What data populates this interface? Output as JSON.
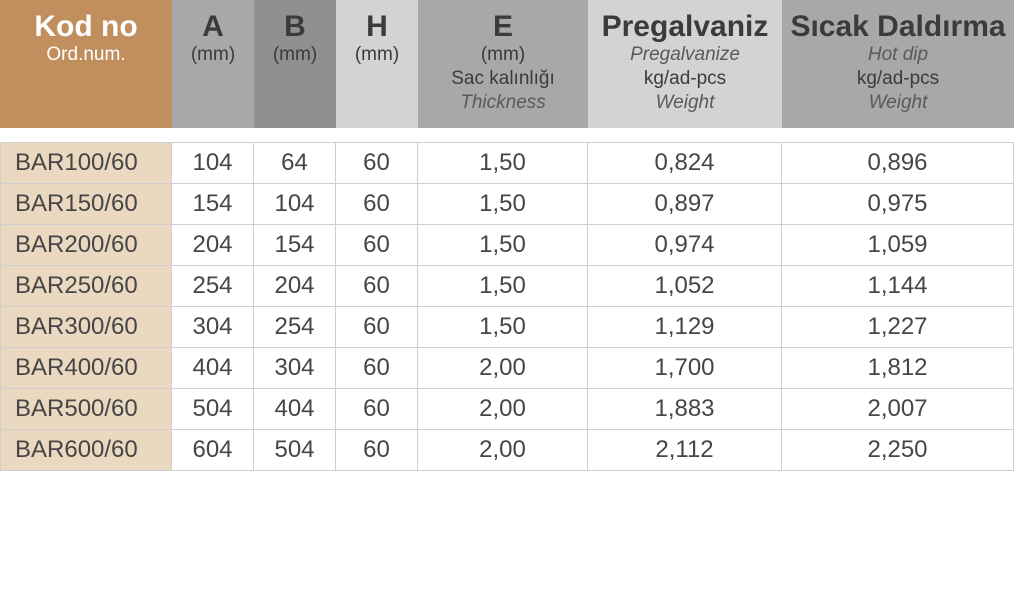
{
  "table": {
    "header_colors": {
      "kod": "#c18f5e",
      "a": "#a8a8ab",
      "b": "#909092",
      "h": "#d3d3d5",
      "e": "#a8a8ab",
      "pregal": "#d3d3d5",
      "hotdip": "#a8a8ab"
    },
    "header_text_colors": {
      "light": "#ffffff",
      "dark": "#3b3b3b",
      "dark_italic": "#5a5a5a"
    },
    "first_col_bg": "#ead8c0",
    "col_widths": [
      "172",
      "82",
      "82",
      "82",
      "170",
      "194",
      "232"
    ],
    "headers": {
      "kod": {
        "title": "Kod no",
        "sub1": "Ord.num."
      },
      "a": {
        "title": "A",
        "sub1": "(mm)"
      },
      "b": {
        "title": "B",
        "sub1": "(mm)"
      },
      "h": {
        "title": "H",
        "sub1": "(mm)"
      },
      "e": {
        "title": "E",
        "sub1": "(mm)",
        "sub2": "Sac kalınlığı",
        "sub3": "Thickness"
      },
      "pregal": {
        "title": "Pregalvaniz",
        "sub1": "Pregalvanize",
        "sub2": "kg/ad-pcs",
        "sub3": "Weight"
      },
      "hotdip": {
        "title": "Sıcak Daldırma",
        "sub1": "Hot dip",
        "sub2": "kg/ad-pcs",
        "sub3": "Weight"
      }
    },
    "rows": [
      {
        "kod": "BAR100/60",
        "a": "104",
        "b": "64",
        "h": "60",
        "e": "1,50",
        "pregal": "0,824",
        "hotdip": "0,896"
      },
      {
        "kod": "BAR150/60",
        "a": "154",
        "b": "104",
        "h": "60",
        "e": "1,50",
        "pregal": "0,897",
        "hotdip": "0,975"
      },
      {
        "kod": "BAR200/60",
        "a": "204",
        "b": "154",
        "h": "60",
        "e": "1,50",
        "pregal": "0,974",
        "hotdip": "1,059"
      },
      {
        "kod": "BAR250/60",
        "a": "254",
        "b": "204",
        "h": "60",
        "e": "1,50",
        "pregal": "1,052",
        "hotdip": "1,144"
      },
      {
        "kod": "BAR300/60",
        "a": "304",
        "b": "254",
        "h": "60",
        "e": "1,50",
        "pregal": "1,129",
        "hotdip": "1,227"
      },
      {
        "kod": "BAR400/60",
        "a": "404",
        "b": "304",
        "h": "60",
        "e": "2,00",
        "pregal": "1,700",
        "hotdip": "1,812"
      },
      {
        "kod": "BAR500/60",
        "a": "504",
        "b": "404",
        "h": "60",
        "e": "2,00",
        "pregal": "1,883",
        "hotdip": "2,007"
      },
      {
        "kod": "BAR600/60",
        "a": "604",
        "b": "504",
        "h": "60",
        "e": "2,00",
        "pregal": "2,112",
        "hotdip": "2,250"
      }
    ]
  }
}
